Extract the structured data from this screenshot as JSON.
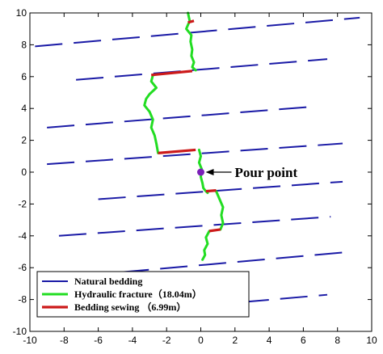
{
  "chart_data": {
    "type": "line",
    "xlim": [
      -10,
      10
    ],
    "ylim": [
      -10,
      10
    ],
    "x_ticks": [
      -10,
      -8,
      -6,
      -4,
      -2,
      0,
      2,
      4,
      6,
      8,
      10
    ],
    "y_ticks": [
      -10,
      -8,
      -6,
      -4,
      -2,
      0,
      2,
      4,
      6,
      8,
      10
    ],
    "x_tick_labels": [
      "-10",
      "-8",
      "-6",
      "-4",
      "-2",
      "0",
      "2",
      "4",
      "6",
      "8",
      "10"
    ],
    "y_tick_labels": [
      "-10",
      "-8",
      "-6",
      "-4",
      "-2",
      "0",
      "2",
      "4",
      "6",
      "8",
      "10"
    ],
    "grid": false,
    "legend_position": "bottom-left",
    "colors": {
      "natural_bedding": "#1a1aa6",
      "hydraulic_fracture": "#22dd22",
      "bedding_sewing": "#cc1a1a",
      "pour_point": "#7a1fb8"
    },
    "series": [
      {
        "name": "Natural bedding",
        "style": "dashed",
        "lines": [
          {
            "x": [
              -9.7,
              9.3
            ],
            "y": [
              7.9,
              9.7
            ]
          },
          {
            "x": [
              -7.3,
              7.4
            ],
            "y": [
              5.8,
              7.1
            ]
          },
          {
            "x": [
              -9.0,
              6.4
            ],
            "y": [
              2.8,
              4.1
            ]
          },
          {
            "x": [
              -9.0,
              8.3
            ],
            "y": [
              0.5,
              1.8
            ]
          },
          {
            "x": [
              -6.0,
              8.3
            ],
            "y": [
              -1.7,
              -0.6
            ]
          },
          {
            "x": [
              -8.3,
              7.6
            ],
            "y": [
              -4.0,
              -2.8
            ]
          },
          {
            "x": [
              -6.9,
              8.8
            ],
            "y": [
              -6.5,
              -5.0
            ]
          },
          {
            "x": [
              -4.4,
              7.4
            ],
            "y": [
              -8.8,
              -7.7
            ]
          }
        ]
      },
      {
        "name": "Hydraulic fracture",
        "length_label": "18.04m",
        "segments": [
          {
            "x": [
              -0.75,
              -0.65,
              -0.85,
              -0.55,
              -0.6,
              -0.5,
              -0.55,
              -0.4,
              -0.5,
              -0.3
            ],
            "y": [
              10,
              9.5,
              9.0,
              8.6,
              8.2,
              7.7,
              7.3,
              6.9,
              6.6,
              6.4
            ]
          },
          {
            "x": [
              -2.8,
              -2.9,
              -2.6,
              -3.0,
              -3.2,
              -3.3,
              -3.0,
              -2.8,
              -2.9,
              -2.7,
              -2.6,
              -2.5
            ],
            "y": [
              6.1,
              5.7,
              5.3,
              4.9,
              4.6,
              4.2,
              3.8,
              3.3,
              2.8,
              2.3,
              1.8,
              1.2
            ]
          },
          {
            "x": [
              -0.1,
              0.0,
              -0.1,
              0.05,
              0.0,
              0.1,
              0.15,
              0.3,
              0.4
            ],
            "y": [
              1.4,
              1.0,
              0.6,
              0.2,
              -0.3,
              -0.7,
              -1.0,
              -1.2,
              -1.3
            ]
          },
          {
            "x": [
              0.9,
              1.1,
              1.3,
              1.2,
              1.3,
              1.15
            ],
            "y": [
              -1.2,
              -1.7,
              -2.2,
              -2.7,
              -3.2,
              -3.6
            ]
          },
          {
            "x": [
              0.5,
              0.3,
              0.4,
              0.2,
              0.25,
              0.1
            ],
            "y": [
              -3.7,
              -4.1,
              -4.5,
              -4.9,
              -5.2,
              -5.5
            ]
          }
        ]
      },
      {
        "name": "Bedding sewing",
        "length_label": "6.99m",
        "segments": [
          {
            "x": [
              -0.75,
              -0.4
            ],
            "y": [
              9.4,
              9.5
            ]
          },
          {
            "x": [
              -2.9,
              -0.5
            ],
            "y": [
              6.1,
              6.35
            ]
          },
          {
            "x": [
              -2.5,
              -0.3
            ],
            "y": [
              1.2,
              1.4
            ]
          },
          {
            "x": [
              0.3,
              0.9
            ],
            "y": [
              -1.2,
              -1.15
            ]
          },
          {
            "x": [
              0.5,
              1.15
            ],
            "y": [
              -3.7,
              -3.6
            ]
          }
        ]
      }
    ],
    "pour_point": {
      "x": 0.0,
      "y": 0.0,
      "label": "Pour point"
    },
    "legend": [
      {
        "key": "natural_bedding",
        "label": "Natural bedding"
      },
      {
        "key": "hydraulic_fracture",
        "label": "Hydraulic fracture（18.04m）"
      },
      {
        "key": "bedding_sewing",
        "label": "Bedding sewing （6.99m）"
      }
    ]
  }
}
